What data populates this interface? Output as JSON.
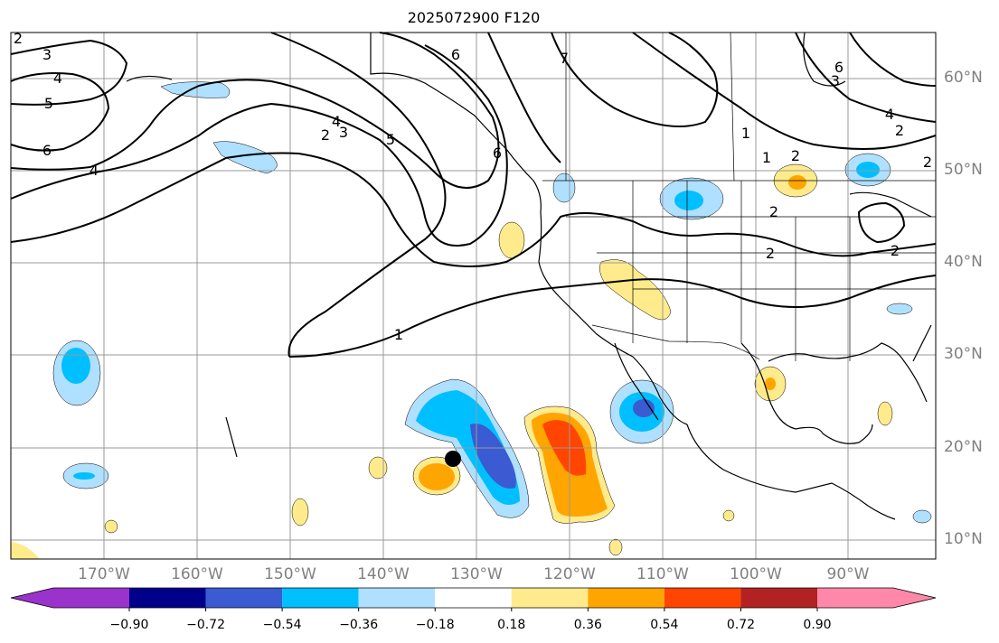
{
  "title": "2025072900 F120",
  "longitude_labels": [
    "170°W",
    "160°W",
    "150°W",
    "140°W",
    "130°W",
    "120°W",
    "110°W",
    "100°W",
    "90°W"
  ],
  "latitude_labels": [
    "60°N",
    "50°N",
    "40°N",
    "30°N",
    "20°N",
    "10°N"
  ],
  "colorbar": {
    "tick_labels": [
      "−0.90",
      "−0.72",
      "−0.54",
      "−0.36",
      "−0.18",
      "0.18",
      "0.36",
      "0.54",
      "0.72",
      "0.90"
    ],
    "colors": [
      "#9933cc",
      "#00008b",
      "#3a5bd1",
      "#00bfff",
      "#b0e0ff",
      "#ffffff",
      "#ffeb8c",
      "#ffa500",
      "#ff4500",
      "#b22222",
      "#ff88aa"
    ]
  },
  "contour_labels": [
    "2",
    "3",
    "4",
    "5",
    "6",
    "4",
    "6",
    "2",
    "3",
    "4",
    "5",
    "6",
    "7",
    "6",
    "3",
    "4",
    "2",
    "2",
    "1",
    "2",
    "2",
    "1",
    "2",
    "2",
    "1"
  ],
  "marker": "black dot"
}
